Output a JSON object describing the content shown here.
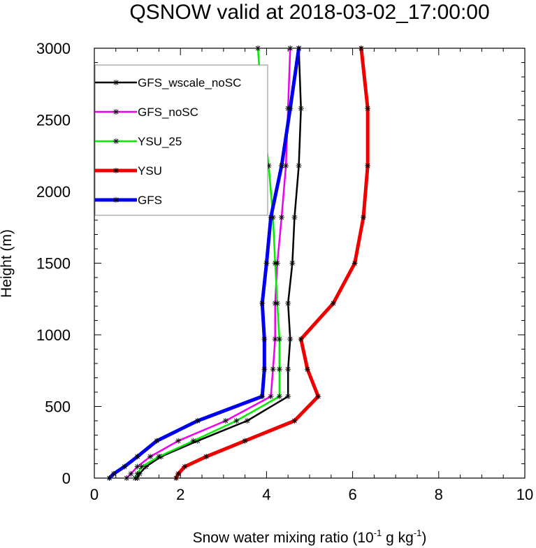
{
  "chart_data": {
    "type": "line",
    "title": "QSNOW valid at 2018-03-02_17:00:00",
    "xlabel": {
      "main": "Snow water mixing ratio (10",
      "exp1": "-1",
      "mid": " g kg",
      "exp2": "-1",
      "end": ")"
    },
    "ylabel": "Height (m)",
    "xlim": [
      0,
      10
    ],
    "ylim": [
      0,
      3000
    ],
    "x_ticks": [
      0,
      2,
      4,
      6,
      8,
      10
    ],
    "y_ticks": [
      0,
      500,
      1000,
      1500,
      2000,
      2500,
      3000
    ],
    "legend_position": "upper-left",
    "series": [
      {
        "name": "GFS_wscale_noSC",
        "color": "#000000",
        "thick": false,
        "points": [
          [
            1.0,
            0
          ],
          [
            1.05,
            30
          ],
          [
            1.2,
            80
          ],
          [
            1.55,
            150
          ],
          [
            2.4,
            260
          ],
          [
            3.55,
            400
          ],
          [
            4.5,
            570
          ],
          [
            4.5,
            760
          ],
          [
            4.55,
            970
          ],
          [
            4.5,
            1220
          ],
          [
            4.6,
            1500
          ],
          [
            4.65,
            1820
          ],
          [
            4.75,
            2180
          ],
          [
            4.8,
            2580
          ],
          [
            4.75,
            3000
          ]
        ]
      },
      {
        "name": "GFS_noSC",
        "color": "#ee00ee",
        "thick": false,
        "points": [
          [
            0.75,
            0
          ],
          [
            0.85,
            30
          ],
          [
            1.0,
            80
          ],
          [
            1.3,
            150
          ],
          [
            1.95,
            260
          ],
          [
            3.05,
            400
          ],
          [
            4.1,
            570
          ],
          [
            4.15,
            760
          ],
          [
            4.2,
            970
          ],
          [
            4.2,
            1220
          ],
          [
            4.25,
            1500
          ],
          [
            4.35,
            1820
          ],
          [
            4.45,
            2180
          ],
          [
            4.5,
            2580
          ],
          [
            4.55,
            3000
          ]
        ]
      },
      {
        "name": "YSU_25",
        "color": "#00ee00",
        "thick": false,
        "points": [
          [
            0.95,
            0
          ],
          [
            1.0,
            30
          ],
          [
            1.1,
            80
          ],
          [
            1.5,
            150
          ],
          [
            2.3,
            260
          ],
          [
            3.3,
            400
          ],
          [
            4.3,
            570
          ],
          [
            4.3,
            760
          ],
          [
            4.3,
            970
          ],
          [
            4.25,
            1220
          ],
          [
            4.2,
            1500
          ],
          [
            4.15,
            1820
          ],
          [
            4.05,
            2180
          ],
          [
            3.9,
            2580
          ],
          [
            3.8,
            3000
          ]
        ]
      },
      {
        "name": "YSU",
        "color": "#ee0000",
        "thick": true,
        "points": [
          [
            1.9,
            0
          ],
          [
            1.95,
            30
          ],
          [
            2.1,
            80
          ],
          [
            2.6,
            150
          ],
          [
            3.5,
            260
          ],
          [
            4.65,
            400
          ],
          [
            5.2,
            570
          ],
          [
            4.95,
            760
          ],
          [
            4.8,
            970
          ],
          [
            5.55,
            1220
          ],
          [
            6.05,
            1500
          ],
          [
            6.25,
            1820
          ],
          [
            6.35,
            2180
          ],
          [
            6.35,
            2580
          ],
          [
            6.2,
            3000
          ]
        ]
      },
      {
        "name": "GFS",
        "color": "#0000ee",
        "thick": true,
        "points": [
          [
            0.35,
            0
          ],
          [
            0.45,
            30
          ],
          [
            0.7,
            80
          ],
          [
            1.0,
            150
          ],
          [
            1.45,
            260
          ],
          [
            2.4,
            400
          ],
          [
            3.9,
            570
          ],
          [
            3.95,
            760
          ],
          [
            3.95,
            970
          ],
          [
            3.9,
            1220
          ],
          [
            4.0,
            1500
          ],
          [
            4.1,
            1820
          ],
          [
            4.35,
            2180
          ],
          [
            4.55,
            2580
          ],
          [
            4.75,
            3000
          ]
        ]
      }
    ]
  }
}
